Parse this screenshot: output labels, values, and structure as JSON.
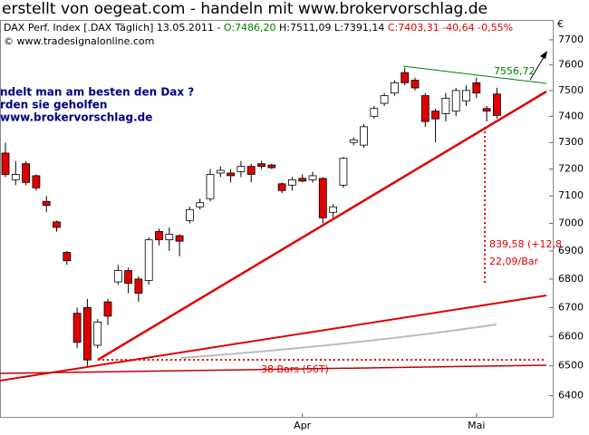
{
  "header": {
    "title": "erstellt von oegeat.com - handeln mit www.brokervorschlag.de",
    "legend": [
      "DAX Perf. Index [.DAX Täglich] 13.05.2011 - ",
      "O:7486,20",
      " H:7511,09 L:7391,14 ",
      "C:7403,31 -40,64 -0,55%"
    ],
    "copyright": "© www.tradesignalonline.com",
    "overlay": [
      "ndelt man am besten  den Dax ?",
      "rden sie geholfen",
      "www.brokervorschlag.de"
    ]
  },
  "chart_data": {
    "type": "candlestick",
    "categories": [
      null,
      null,
      null,
      null,
      null,
      null,
      null,
      null,
      null,
      null,
      null,
      null,
      null,
      null,
      null,
      null,
      null,
      null,
      null,
      null,
      null,
      null,
      null,
      null,
      null,
      null,
      null,
      null,
      null,
      "Apr",
      null,
      null,
      null,
      null,
      null,
      null,
      null,
      null,
      null,
      null,
      null,
      null,
      null,
      null,
      null,
      null,
      "Mai",
      null,
      null
    ],
    "open": [
      7260,
      7160,
      7220,
      7175,
      7080,
      7005,
      6895,
      6680,
      6700,
      6570,
      6720,
      6790,
      6830,
      6800,
      6795,
      6970,
      6940,
      6955,
      7010,
      7060,
      7090,
      7185,
      7185,
      7190,
      7210,
      7220,
      7215,
      7145,
      7140,
      7165,
      7160,
      7165,
      7040,
      7140,
      7300,
      7290,
      7400,
      7450,
      7490,
      7570,
      7540,
      7480,
      7420,
      7410,
      7420,
      7460,
      7530,
      7430,
      7486.2
    ],
    "high": [
      7300,
      7230,
      7230,
      7180,
      7100,
      7010,
      6900,
      6700,
      6730,
      6660,
      6730,
      6850,
      6840,
      6810,
      6950,
      6980,
      6985,
      6960,
      7060,
      7090,
      7200,
      7210,
      7200,
      7230,
      7220,
      7230,
      7220,
      7150,
      7170,
      7180,
      7190,
      7170,
      7070,
      7245,
      7320,
      7370,
      7440,
      7490,
      7540,
      7590,
      7550,
      7490,
      7430,
      7490,
      7510,
      7520,
      7550,
      7440,
      7511.09
    ],
    "low": [
      7170,
      7140,
      7140,
      7120,
      7040,
      6970,
      6850,
      6560,
      6500,
      6560,
      6640,
      6780,
      6750,
      6720,
      6780,
      6920,
      6900,
      6880,
      7000,
      7050,
      7080,
      7170,
      7150,
      7170,
      7150,
      7200,
      7200,
      7110,
      7120,
      7150,
      7150,
      7000,
      7020,
      7130,
      7290,
      7280,
      7390,
      7440,
      7480,
      7520,
      7500,
      7360,
      7300,
      7380,
      7400,
      7440,
      7470,
      7380,
      7391.14
    ],
    "close": [
      7180,
      7180,
      7150,
      7130,
      7065,
      6985,
      6865,
      6580,
      6520,
      6650,
      6670,
      6830,
      6785,
      6750,
      6940,
      6940,
      6960,
      6935,
      7050,
      7075,
      7180,
      7195,
      7175,
      7210,
      7180,
      7210,
      7205,
      7120,
      7160,
      7155,
      7175,
      7020,
      7060,
      7240,
      7310,
      7360,
      7430,
      7480,
      7530,
      7530,
      7510,
      7380,
      7390,
      7470,
      7500,
      7500,
      7490,
      7420,
      7403.31
    ],
    "up_color": "#ffffff",
    "down_color": "#e00000",
    "log_scale": true,
    "ylim": [
      6330,
      7780
    ],
    "yticks": [
      6400,
      6500,
      6600,
      6700,
      6800,
      6900,
      7000,
      7100,
      7200,
      7300,
      7400,
      7500,
      7600,
      7700
    ],
    "y_unit": "€",
    "annotations": [
      "7556,72",
      "839,58 (+12,8",
      "22,09/Bar",
      "38 Bars (56T)"
    ]
  }
}
